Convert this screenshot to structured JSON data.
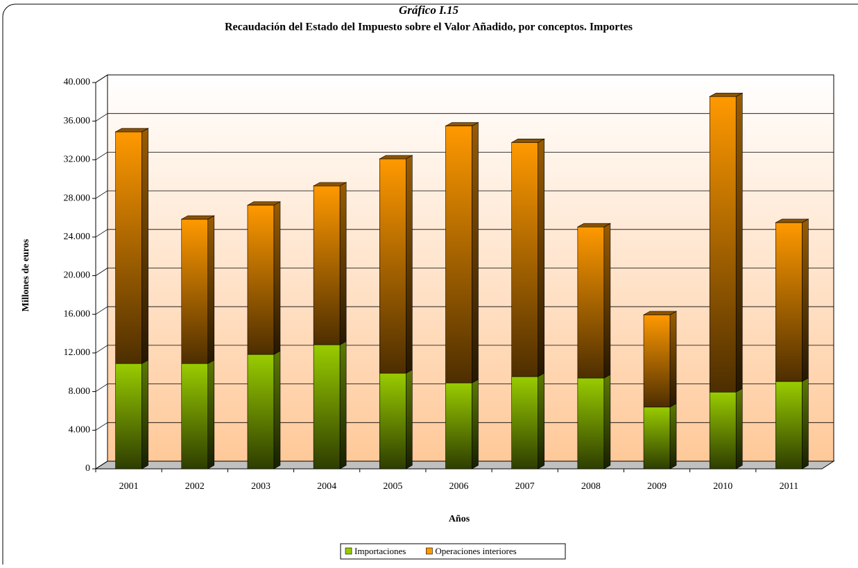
{
  "chart_data": {
    "type": "bar",
    "stacked": true,
    "subtitle": "Gráfico I.15",
    "title": "Recaudación del Estado del Impuesto sobre el Valor Añadido, por conceptos.  Importes",
    "x_label": "Años",
    "y_label": "Millones de euros",
    "categories": [
      "2001",
      "2002",
      "2003",
      "2004",
      "2005",
      "2006",
      "2007",
      "2008",
      "2009",
      "2010",
      "2011"
    ],
    "series": [
      {
        "name": "Importaciones",
        "color": "#99cc00",
        "values": [
          10900,
          10900,
          11850,
          12850,
          9900,
          8900,
          9550,
          9400,
          6400,
          7950,
          9050
        ]
      },
      {
        "name": "Operaciones interiores",
        "color": "#ff9900",
        "values": [
          24000,
          14950,
          15450,
          16450,
          22200,
          26600,
          24250,
          15650,
          9550,
          30600,
          16450
        ]
      }
    ],
    "ylim": [
      0,
      40000
    ],
    "yticks": [
      0,
      {
        "value": 4000,
        "label": "4.000"
      },
      {
        "value": 8000,
        "label": "8.000"
      },
      {
        "value": 12000,
        "label": "12.000"
      },
      {
        "value": 16000,
        "label": "16.000"
      },
      {
        "value": 20000,
        "label": "20.000"
      },
      {
        "value": 24000,
        "label": "24.000"
      },
      {
        "value": 28000,
        "label": "28.000"
      },
      {
        "value": 32000,
        "label": "32.000"
      },
      {
        "value": 36000,
        "label": "36.000"
      },
      {
        "value": 40000,
        "label": "40.000"
      }
    ],
    "grid": true,
    "legend": "bottom"
  }
}
